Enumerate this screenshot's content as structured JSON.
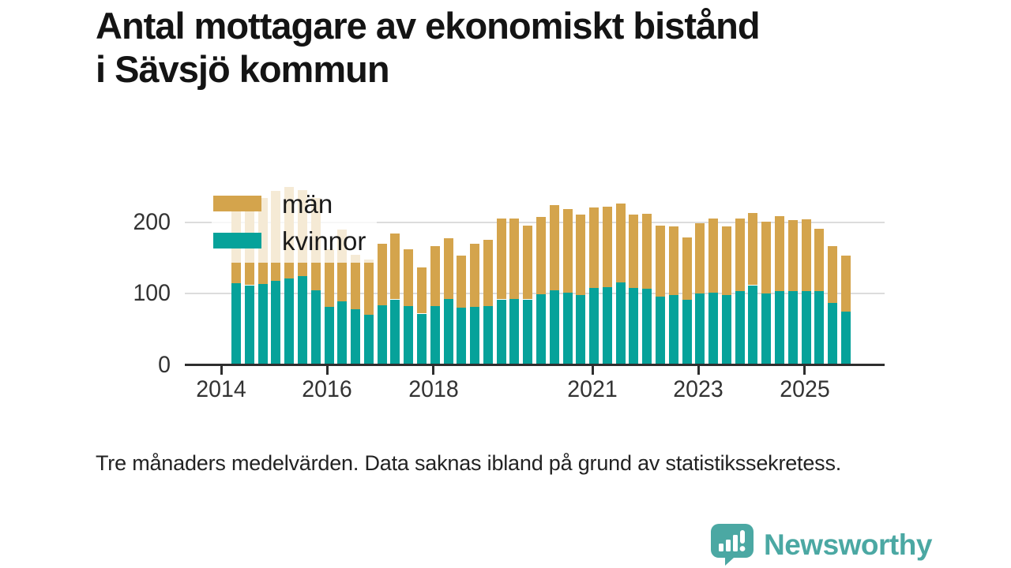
{
  "title": {
    "line1": "Antal mottagare av ekonomiskt bistånd",
    "line2": "i Sävsjö kommun"
  },
  "legend": {
    "items": [
      {
        "label": "män",
        "color": "#D4A44C"
      },
      {
        "label": "kvinnor",
        "color": "#06A29A"
      }
    ]
  },
  "footnote": "Tre månaders medelvärden. Data saknas ibland på grund av statistikssekretess.",
  "logo": {
    "text": "Newsworthy",
    "color": "#4BA8A3",
    "icon": "bar-chart-speech-bubble-icon"
  },
  "colors": {
    "men": "#D4A44C",
    "women": "#06A29A",
    "axis": "#2E2E2E",
    "gridline": "#DCDCDC",
    "text": "#1A1A1A",
    "tick_label": "#333333",
    "background": "#FFFFFF"
  },
  "chart_data": {
    "type": "bar",
    "stacked": true,
    "title": "Antal mottagare av ekonomiskt bistånd i Sävsjö kommun",
    "xlabel": "",
    "ylabel": "",
    "y_ticks": [
      0,
      100,
      200
    ],
    "x_tick_years": [
      2014,
      2016,
      2018,
      2021,
      2023,
      2025
    ],
    "ylim": [
      0,
      260
    ],
    "grid": "horizontal",
    "legend_position": "top-left-overlay",
    "categories": [
      "2014-Q2",
      "2014-Q3",
      "2014-Q4",
      "2015-Q1",
      "2015-Q2",
      "2015-Q3",
      "2015-Q4",
      "2016-Q1",
      "2016-Q2",
      "2016-Q3",
      "2016-Q4",
      "2017-Q1",
      "2017-Q2",
      "2017-Q3",
      "2017-Q4",
      "2018-Q1",
      "2018-Q2",
      "2018-Q3",
      "2018-Q4",
      "2019-Q1",
      "2019-Q2",
      "2019-Q3",
      "2019-Q4",
      "2020-Q1",
      "2020-Q2",
      "2020-Q3",
      "2020-Q4",
      "2021-Q1",
      "2021-Q2",
      "2021-Q3",
      "2021-Q4",
      "2022-Q1",
      "2022-Q2",
      "2022-Q3",
      "2022-Q4",
      "2023-Q1",
      "2023-Q2",
      "2023-Q3",
      "2023-Q4",
      "2024-Q1",
      "2024-Q2",
      "2024-Q3",
      "2024-Q4",
      "2025-Q1",
      "2025-Q2",
      "2025-Q3",
      "2025-Q4"
    ],
    "series": [
      {
        "name": "kvinnor",
        "color": "#06A29A",
        "values": [
          115,
          112,
          114,
          118,
          122,
          125,
          105,
          81,
          89,
          78,
          71,
          84,
          92,
          83,
          72,
          83,
          93,
          80,
          82,
          83,
          92,
          93,
          92,
          99,
          105,
          102,
          98,
          108,
          109,
          116,
          108,
          107,
          96,
          98,
          91,
          100,
          101,
          98,
          104,
          112,
          100,
          104,
          104,
          104,
          104,
          87,
          75
        ]
      },
      {
        "name": "män",
        "color": "#D4A44C",
        "values": [
          108,
          115,
          121,
          126,
          128,
          121,
          129,
          81,
          101,
          77,
          77,
          86,
          93,
          80,
          65,
          84,
          85,
          74,
          88,
          93,
          114,
          113,
          104,
          109,
          120,
          117,
          113,
          113,
          113,
          111,
          103,
          105,
          100,
          97,
          88,
          99,
          105,
          97,
          102,
          101,
          101,
          105,
          99,
          101,
          87,
          80,
          79
        ]
      }
    ]
  }
}
